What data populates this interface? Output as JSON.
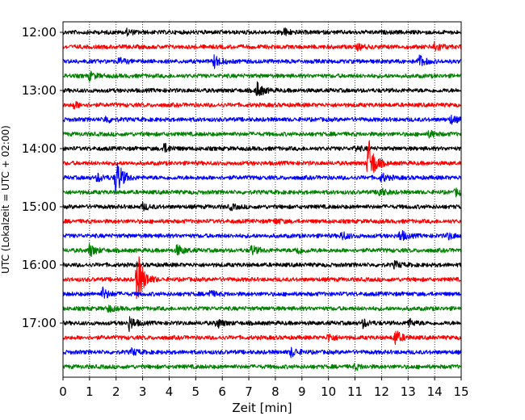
{
  "chart_data": {
    "type": "line",
    "title": "",
    "xlabel": "Zeit  [min]",
    "ylabel": "UTC (Lokalzeit = UTC + 02:00)",
    "xlim": [
      0,
      15
    ],
    "x_ticks": [
      "0",
      "1",
      "2",
      "3",
      "4",
      "5",
      "6",
      "7",
      "8",
      "9",
      "10",
      "11",
      "12",
      "13",
      "14",
      "15"
    ],
    "y_ticks": [
      "12:00",
      "13:00",
      "14:00",
      "15:00",
      "16:00",
      "17:00"
    ],
    "grid": "vertical-dotted",
    "trace_interval_min": 15,
    "colors": [
      "#000000",
      "#ff0000",
      "#0000ff",
      "#008000"
    ],
    "traces": [
      {
        "start": "12:00",
        "color": "#000000",
        "events": [
          {
            "t": 8.3,
            "amp": 0.5
          },
          {
            "t": 2.4,
            "amp": 0.3
          }
        ]
      },
      {
        "start": "12:15",
        "color": "#ff0000",
        "events": [
          {
            "t": 14.0,
            "amp": 0.7
          },
          {
            "t": 11.1,
            "amp": 0.3
          }
        ]
      },
      {
        "start": "12:30",
        "color": "#0000ff",
        "events": [
          {
            "t": 5.7,
            "amp": 0.8
          },
          {
            "t": 13.4,
            "amp": 0.8
          },
          {
            "t": 2.1,
            "amp": 0.4
          }
        ]
      },
      {
        "start": "12:45",
        "color": "#008000",
        "events": [
          {
            "t": 1.0,
            "amp": 0.5
          }
        ]
      },
      {
        "start": "13:00",
        "color": "#000000",
        "events": [
          {
            "t": 7.3,
            "amp": 1.0
          }
        ]
      },
      {
        "start": "13:15",
        "color": "#ff0000",
        "events": [
          {
            "t": 0.4,
            "amp": 0.4
          }
        ]
      },
      {
        "start": "13:30",
        "color": "#0000ff",
        "events": [
          {
            "t": 1.6,
            "amp": 0.4
          },
          {
            "t": 14.6,
            "amp": 0.5
          }
        ]
      },
      {
        "start": "13:45",
        "color": "#008000",
        "events": [
          {
            "t": 13.8,
            "amp": 0.4
          }
        ]
      },
      {
        "start": "14:00",
        "color": "#000000",
        "events": [
          {
            "t": 3.8,
            "amp": 0.6
          },
          {
            "t": 11.0,
            "amp": 0.3
          }
        ]
      },
      {
        "start": "14:15",
        "color": "#ff0000",
        "events": [
          {
            "t": 11.5,
            "amp": 1.8
          }
        ]
      },
      {
        "start": "14:30",
        "color": "#0000ff",
        "events": [
          {
            "t": 2.0,
            "amp": 1.4
          },
          {
            "t": 1.3,
            "amp": 0.5
          },
          {
            "t": 12.0,
            "amp": 0.5
          }
        ]
      },
      {
        "start": "14:45",
        "color": "#008000",
        "events": [
          {
            "t": 11.9,
            "amp": 0.6
          },
          {
            "t": 14.8,
            "amp": 0.4
          }
        ]
      },
      {
        "start": "15:00",
        "color": "#000000",
        "events": [
          {
            "t": 3.0,
            "amp": 0.4
          },
          {
            "t": 6.3,
            "amp": 0.3
          }
        ]
      },
      {
        "start": "15:15",
        "color": "#ff0000",
        "events": [
          {
            "t": 8.0,
            "amp": 0.3
          }
        ]
      },
      {
        "start": "15:30",
        "color": "#0000ff",
        "events": [
          {
            "t": 12.7,
            "amp": 0.7
          },
          {
            "t": 10.5,
            "amp": 0.5
          },
          {
            "t": 14.5,
            "amp": 0.4
          }
        ]
      },
      {
        "start": "15:45",
        "color": "#008000",
        "events": [
          {
            "t": 1.0,
            "amp": 0.8
          },
          {
            "t": 4.3,
            "amp": 0.7
          },
          {
            "t": 7.1,
            "amp": 0.6
          },
          {
            "t": 8.8,
            "amp": 0.5
          }
        ]
      },
      {
        "start": "16:00",
        "color": "#000000",
        "events": [
          {
            "t": 12.5,
            "amp": 0.4
          }
        ]
      },
      {
        "start": "16:15",
        "color": "#ff0000",
        "events": [
          {
            "t": 2.8,
            "amp": 2.0
          }
        ]
      },
      {
        "start": "16:30",
        "color": "#0000ff",
        "events": [
          {
            "t": 1.5,
            "amp": 0.7
          },
          {
            "t": 5.5,
            "amp": 0.4
          }
        ]
      },
      {
        "start": "16:45",
        "color": "#008000",
        "events": [
          {
            "t": 1.7,
            "amp": 0.4
          }
        ]
      },
      {
        "start": "17:00",
        "color": "#000000",
        "events": [
          {
            "t": 2.5,
            "amp": 0.9
          },
          {
            "t": 5.8,
            "amp": 0.6
          },
          {
            "t": 11.3,
            "amp": 0.5
          },
          {
            "t": 13.0,
            "amp": 0.5
          }
        ]
      },
      {
        "start": "17:15",
        "color": "#ff0000",
        "events": [
          {
            "t": 12.5,
            "amp": 1.0
          },
          {
            "t": 10.0,
            "amp": 0.5
          }
        ]
      },
      {
        "start": "17:30",
        "color": "#0000ff",
        "events": [
          {
            "t": 8.6,
            "amp": 0.6
          },
          {
            "t": 2.6,
            "amp": 0.4
          }
        ]
      },
      {
        "start": "17:45",
        "color": "#008000",
        "events": [
          {
            "t": 11.0,
            "amp": 0.3
          }
        ]
      }
    ]
  }
}
